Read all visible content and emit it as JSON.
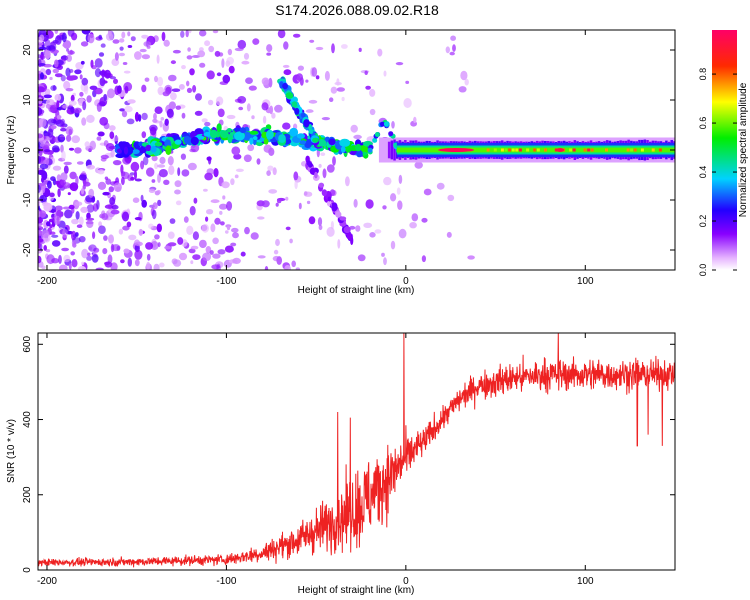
{
  "figure": {
    "title": "S174.2026.088.09.02.R18"
  },
  "chart_data": [
    {
      "type": "heatmap",
      "description_kind": "spectrogram",
      "xlabel": "Height of straight line (km)",
      "ylabel": "Frequency (Hz)",
      "xlim": [
        -205,
        150
      ],
      "ylim": [
        -24,
        24
      ],
      "xticks": [
        -200,
        -100,
        0,
        100
      ],
      "yticks": [
        -20,
        -10,
        0,
        10,
        20
      ],
      "colorbar": {
        "label": "Normalized spectral amplitude",
        "range": [
          0,
          0.98
        ],
        "ticks": [
          0.0,
          0.2,
          0.4,
          0.6,
          0.8
        ]
      },
      "features": [
        {
          "name": "main-line",
          "x_range": [
            0,
            150
          ],
          "freq_hz": 0,
          "amplitude": 0.9
        },
        {
          "name": "peak-spot",
          "x": 28,
          "freq_hz": 0,
          "amplitude": 0.98
        },
        {
          "name": "wandering-band",
          "x_range": [
            -160,
            -20
          ],
          "freq_range_hz": [
            -2,
            5
          ],
          "amplitude": 0.4
        },
        {
          "name": "spur",
          "x_range": [
            -70,
            -50
          ],
          "freq_range_hz": [
            2,
            14
          ],
          "amplitude": 0.3
        },
        {
          "name": "spike",
          "x": -12,
          "freq_hz": 6,
          "amplitude": 0.3
        },
        {
          "name": "noise-field",
          "x_range": [
            -205,
            -100
          ],
          "freq_range_hz": [
            -24,
            24
          ],
          "amplitude": 0.12
        }
      ]
    },
    {
      "type": "line",
      "xlabel": "Height of straight line (km)",
      "ylabel": "SNR (10 * v/v)",
      "xlim": [
        -205,
        150
      ],
      "ylim": [
        0,
        630
      ],
      "xticks": [
        -200,
        -100,
        0,
        100
      ],
      "yticks": [
        0,
        200,
        400,
        600
      ],
      "series": [
        {
          "name": "SNR",
          "color": "#ee2222",
          "envelope": {
            "x": [
              -205,
              -150,
              -100,
              -80,
              -60,
              -40,
              -25,
              -15,
              -5,
              0,
              10,
              20,
              30,
              40,
              60,
              80,
              100,
              120,
              150
            ],
            "base": [
              20,
              22,
              28,
              45,
              80,
              130,
              170,
              220,
              270,
              300,
              340,
              400,
              455,
              490,
              510,
              520,
              520,
              520,
              520
            ],
            "jitter": [
              10,
              12,
              15,
              25,
              45,
              80,
              120,
              110,
              80,
              60,
              40,
              35,
              35,
              40,
              45,
              45,
              45,
              45,
              40
            ]
          },
          "spikes": [
            {
              "x": -38,
              "y": 420
            },
            {
              "x": -31,
              "y": 405
            },
            {
              "x": -1,
              "y": 630
            },
            {
              "x": 85,
              "y": 635
            },
            {
              "x": 129,
              "y": 330
            },
            {
              "x": 135,
              "y": 360
            },
            {
              "x": 143,
              "y": 330
            }
          ]
        }
      ]
    }
  ]
}
